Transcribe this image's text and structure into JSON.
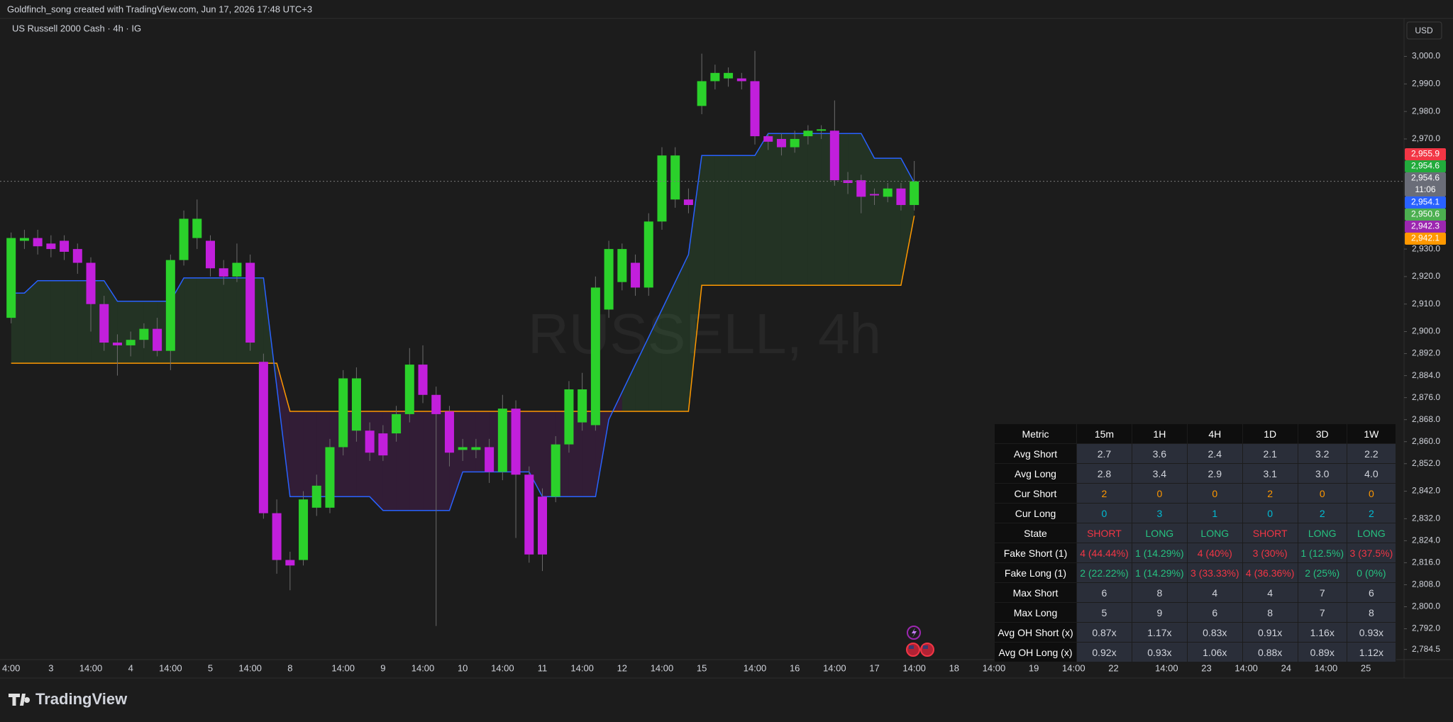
{
  "header": {
    "credit": "Goldfinch_song created with TradingView.com, Jun 17, 2026 17:48 UTC+3",
    "currency": "USD"
  },
  "footer": {
    "brand": "TradingView"
  },
  "chart_data": {
    "type": "candlestick",
    "title": "US Russell 2000 Cash · 4h · IG",
    "watermark": "RUSSELL, 4h",
    "up_color": "#2bd12b",
    "down_color": "#c21fdc",
    "categories": [
      "4:00",
      null,
      null,
      "3",
      null,
      null,
      "14:00",
      null,
      null,
      "4",
      null,
      null,
      "14:00",
      null,
      null,
      "5",
      null,
      null,
      "14:00",
      null,
      null,
      "8",
      null,
      null,
      null,
      "14:00",
      null,
      null,
      "9",
      null,
      null,
      "14:00",
      null,
      null,
      "10",
      null,
      null,
      "14:00",
      null,
      null,
      "11",
      null,
      null,
      "14:00",
      null,
      null,
      "12",
      null,
      null,
      "14:00",
      null,
      null,
      "15",
      null,
      null,
      null,
      "14:00",
      null,
      null,
      "16",
      null,
      null,
      "14:00",
      null,
      null,
      "17",
      null,
      null,
      "14:00",
      null,
      null,
      "18",
      null,
      null,
      "14:00",
      null,
      null,
      "19",
      null,
      null,
      "14:00",
      null,
      null,
      "22",
      null,
      null,
      null,
      "14:00",
      null,
      null,
      "23",
      null,
      null,
      "14:00",
      null,
      null,
      "24",
      null,
      null,
      "14:00",
      null,
      null,
      "25",
      null
    ],
    "open": [
      2905,
      2933,
      2934,
      2932,
      2933,
      2930,
      2925,
      2910,
      2896,
      2895,
      2897,
      2901,
      2893,
      2926,
      2934,
      2933,
      2923,
      2920,
      2925,
      2889,
      2834,
      2817,
      2817,
      2836,
      2836,
      2858,
      2864,
      2864,
      2863,
      2863,
      2870,
      2888,
      2877,
      2871,
      2857,
      2857,
      2858,
      2849,
      2872,
      2848,
      2840,
      2840,
      2859,
      2867,
      2866,
      2908,
      2918,
      2925,
      2916,
      2940,
      2948,
      2948,
      2982,
      2991,
      2992,
      2992,
      2991,
      2971,
      2970,
      2967,
      2971,
      2973,
      2973,
      2955,
      2955,
      2950,
      2949,
      2952,
      2946,
      null,
      null,
      null,
      null,
      null,
      null,
      null,
      null,
      null,
      null,
      null,
      null,
      null,
      null,
      null,
      null,
      null,
      null,
      null,
      null,
      null,
      null,
      null,
      null,
      null,
      null,
      null,
      null,
      null,
      null,
      null,
      null,
      null,
      null,
      null
    ],
    "high": [
      2936,
      2937,
      2937,
      2935,
      2935,
      2932,
      2927,
      2913,
      2899,
      2900,
      2903,
      2905,
      2928,
      2944,
      2948,
      2935,
      2926,
      2932,
      2928,
      2892,
      2839,
      2820,
      2842,
      2848,
      2861,
      2886,
      2887,
      2867,
      2866,
      2873,
      2894,
      2895,
      2880,
      2873,
      2861,
      2861,
      2861,
      2877,
      2875,
      2851,
      2843,
      2862,
      2882,
      2885,
      2920,
      2933,
      2932,
      2928,
      2943,
      2967,
      2967,
      2952,
      3001,
      2997,
      2996,
      2994,
      3002,
      2972,
      2972,
      2973,
      2975,
      2975,
      2984,
      2958,
      2957,
      2952,
      2954,
      2954,
      2962,
      null,
      null,
      null,
      null,
      null,
      null,
      null,
      null,
      null,
      null,
      null,
      null,
      null,
      null,
      null,
      null,
      null,
      null,
      null,
      null,
      null,
      null,
      null,
      null,
      null,
      null,
      null,
      null,
      null,
      null,
      null,
      null,
      null,
      null,
      null
    ],
    "low": [
      2903,
      2930,
      2928,
      2927,
      2926,
      2921,
      2900,
      2893,
      2884,
      2891,
      2894,
      2891,
      2886,
      2924,
      2930,
      2920,
      2917,
      2918,
      2893,
      2832,
      2812,
      2806,
      2815,
      2833,
      2834,
      2855,
      2860,
      2853,
      2853,
      2860,
      2867,
      2874,
      2793,
      2851,
      2853,
      2854,
      2845,
      2846,
      2825,
      2816,
      2813,
      2838,
      2856,
      2864,
      2864,
      2905,
      2915,
      2913,
      2913,
      2937,
      2945,
      2943,
      2979,
      2988,
      2989,
      2988,
      2968,
      2966,
      2964,
      2965,
      2968,
      2970,
      2953,
      2950,
      2943,
      2946,
      2947,
      2944,
      2944,
      null,
      null,
      null,
      null,
      null,
      null,
      null,
      null,
      null,
      null,
      null,
      null,
      null,
      null,
      null,
      null,
      null,
      null,
      null,
      null,
      null,
      null,
      null,
      null,
      null,
      null,
      null,
      null,
      null,
      null,
      null,
      null,
      null,
      null,
      null
    ],
    "close": [
      2934,
      2934,
      2931,
      2930,
      2929,
      2925,
      2910,
      2896,
      2895,
      2897,
      2901,
      2893,
      2926,
      2941,
      2941,
      2923,
      2920,
      2925,
      2896,
      2834,
      2817,
      2815,
      2839,
      2844,
      2858,
      2883,
      2883,
      2856,
      2855,
      2870,
      2888,
      2877,
      2870,
      2856,
      2858,
      2858,
      2849,
      2872,
      2848,
      2819,
      2819,
      2859,
      2879,
      2879,
      2916,
      2930,
      2930,
      2916,
      2940,
      2964,
      2964,
      2946,
      2991,
      2994,
      2994,
      2991,
      2971,
      2969,
      2967,
      2970,
      2973,
      2973.5,
      2955,
      2954,
      2949,
      2949.5,
      2952,
      2946,
      2954.6,
      null,
      null,
      null,
      null,
      null,
      null,
      null,
      null,
      null,
      null,
      null,
      null,
      null,
      null,
      null,
      null,
      null,
      null,
      null,
      null,
      null,
      null,
      null,
      null,
      null,
      null,
      null,
      null,
      null,
      null,
      null,
      null,
      null,
      null,
      null
    ],
    "series": [
      {
        "color": "#ff9800",
        "values": [
          2888.5,
          2888.5,
          2888.5,
          2888.5,
          2888.5,
          2888.5,
          2888.5,
          2888.5,
          2888.5,
          2888.5,
          2888.5,
          2888.5,
          2888.5,
          2888.5,
          2888.5,
          2888.5,
          2888.5,
          2888.5,
          2888.5,
          2888.5,
          2888.5,
          2871,
          2871,
          2871,
          2871,
          2871,
          2871,
          2871,
          2871,
          2871,
          2871,
          2871,
          2871,
          2871,
          2871,
          2871,
          2871,
          2871,
          2871,
          2871,
          2871,
          2871,
          2871,
          2871,
          2871,
          2871,
          2871,
          2871,
          2871,
          2871,
          2871,
          2871,
          2916.8,
          2916.8,
          2916.8,
          2916.8,
          2916.8,
          2916.8,
          2916.8,
          2916.8,
          2916.8,
          2916.8,
          2916.8,
          2916.8,
          2916.8,
          2916.8,
          2916.8,
          2916.8,
          2942.1,
          null,
          null,
          null,
          null,
          null,
          null,
          null,
          null,
          null,
          null,
          null,
          null,
          null,
          null,
          null,
          null,
          null,
          null,
          null,
          null,
          null,
          null,
          null,
          null,
          null,
          null,
          null,
          null,
          null,
          null,
          null,
          null,
          null,
          null,
          null
        ]
      },
      {
        "color": "#2962ff",
        "values": [
          2914,
          2914,
          2918.5,
          2918.5,
          2918.5,
          2918.5,
          2918.5,
          2918.5,
          2911,
          2911,
          2911,
          2911,
          2911,
          2919.5,
          2919.5,
          2919.5,
          2919.5,
          2919.5,
          2919.5,
          2919.5,
          2880,
          2840,
          2840,
          2840,
          2840,
          2840,
          2840,
          2840,
          2835,
          2835,
          2835,
          2835,
          2835,
          2835,
          2849,
          2849,
          2849,
          2849,
          2849,
          2849,
          2840,
          2840,
          2840,
          2840,
          2840,
          2868,
          2878,
          2888,
          2898,
          2908,
          2918,
          2928,
          2964,
          2964,
          2964,
          2964,
          2964,
          2972,
          2972,
          2972,
          2972,
          2972,
          2972,
          2972,
          2972,
          2963,
          2963,
          2963,
          2954.1,
          null,
          null,
          null,
          null,
          null,
          null,
          null,
          null,
          null,
          null,
          null,
          null,
          null,
          null,
          null,
          null,
          null,
          null,
          null,
          null,
          null,
          null,
          null,
          null,
          null,
          null,
          null,
          null,
          null,
          null,
          null,
          null,
          null,
          null,
          null
        ]
      }
    ],
    "ylim": [
      2780.8,
      3013.8
    ],
    "yticks": [
      {
        "value": 3000,
        "label": "3,000.0"
      },
      {
        "value": 2990,
        "label": "2,990.0"
      },
      {
        "value": 2980,
        "label": "2,980.0"
      },
      {
        "value": 2970,
        "label": "2,970.0"
      },
      {
        "value": 2930,
        "label": "2,930.0"
      },
      {
        "value": 2920,
        "label": "2,920.0"
      },
      {
        "value": 2910,
        "label": "2,910.0"
      },
      {
        "value": 2900,
        "label": "2,900.0"
      },
      {
        "value": 2892,
        "label": "2,892.0"
      },
      {
        "value": 2884,
        "label": "2,884.0"
      },
      {
        "value": 2876,
        "label": "2,876.0"
      },
      {
        "value": 2868,
        "label": "2,868.0"
      },
      {
        "value": 2860,
        "label": "2,860.0"
      },
      {
        "value": 2852,
        "label": "2,852.0"
      },
      {
        "value": 2842,
        "label": "2,842.0"
      },
      {
        "value": 2832,
        "label": "2,832.0"
      },
      {
        "value": 2824,
        "label": "2,824.0"
      },
      {
        "value": 2816,
        "label": "2,816.0"
      },
      {
        "value": 2808,
        "label": "2,808.0"
      },
      {
        "value": 2800,
        "label": "2,800.0"
      },
      {
        "value": 2792,
        "label": "2,792.0"
      },
      {
        "value": 2784.5,
        "label": "2,784.5"
      }
    ],
    "price_labels": [
      {
        "value": 2955.9,
        "label": "2,955.9",
        "color": "#f23645"
      },
      {
        "value": 2954.6,
        "label": "2,954.6",
        "color": "#22ab3c"
      },
      {
        "value": 2954.6,
        "label": "2,954.6",
        "countdown": "11:06",
        "color": "#6a6d78"
      },
      {
        "value": 2954.1,
        "label": "2,954.1",
        "color": "#2962ff"
      },
      {
        "value": 2950.6,
        "label": "2,950.6",
        "color": "#4caf50"
      },
      {
        "value": 2942.3,
        "label": "2,942.3",
        "color": "#9c27b0"
      },
      {
        "value": 2942.1,
        "label": "2,942.1",
        "color": "#ff9800"
      }
    ]
  },
  "table": {
    "columns": [
      "Metric",
      "15m",
      "1H",
      "4H",
      "1D",
      "3D",
      "1W"
    ],
    "rows": [
      {
        "cells": [
          "Avg Short",
          "2.7",
          "3.6",
          "2.4",
          "2.1",
          "3.2",
          "2.2"
        ]
      },
      {
        "cells": [
          "Avg Long",
          "2.8",
          "3.4",
          "2.9",
          "3.1",
          "3.0",
          "4.0"
        ]
      },
      {
        "cells": [
          "Cur Short",
          "2",
          "0",
          "0",
          "2",
          "0",
          "0"
        ],
        "colors": [
          null,
          "#ff9800",
          "#ff9800",
          "#ff9800",
          "#ff9800",
          "#ff9800",
          "#ff9800"
        ]
      },
      {
        "cells": [
          "Cur Long",
          "0",
          "3",
          "1",
          "0",
          "2",
          "2"
        ],
        "colors": [
          null,
          "#00bcd4",
          "#00bcd4",
          "#00bcd4",
          "#00bcd4",
          "#00bcd4",
          "#00bcd4"
        ]
      },
      {
        "cells": [
          "State",
          "SHORT",
          "LONG",
          "LONG",
          "SHORT",
          "LONG",
          "LONG"
        ],
        "colors": [
          null,
          "#f23645",
          "#26c281",
          "#26c281",
          "#f23645",
          "#26c281",
          "#26c281"
        ]
      },
      {
        "cells": [
          "Fake Short (1)",
          "4 (44.44%)",
          "1 (14.29%)",
          "4 (40%)",
          "3 (30%)",
          "1 (12.5%)",
          "3 (37.5%)"
        ],
        "colors": [
          null,
          "#f23645",
          "#26c281",
          "#f23645",
          "#f23645",
          "#26c281",
          "#f23645"
        ]
      },
      {
        "cells": [
          "Fake Long (1)",
          "2 (22.22%)",
          "1 (14.29%)",
          "3 (33.33%)",
          "4 (36.36%)",
          "2 (25%)",
          "0 (0%)"
        ],
        "colors": [
          null,
          "#26c281",
          "#26c281",
          "#f23645",
          "#f23645",
          "#26c281",
          "#26c281"
        ]
      },
      {
        "cells": [
          "Max Short",
          "6",
          "8",
          "4",
          "4",
          "7",
          "6"
        ]
      },
      {
        "cells": [
          "Max Long",
          "5",
          "9",
          "6",
          "8",
          "7",
          "8"
        ]
      },
      {
        "cells": [
          "Avg OH Short (x)",
          "0.87x",
          "1.17x",
          "0.83x",
          "0.91x",
          "1.16x",
          "0.93x"
        ]
      },
      {
        "cells": [
          "Avg OH Long (x)",
          "0.92x",
          "0.93x",
          "1.06x",
          "0.88x",
          "0.89x",
          "1.12x"
        ]
      }
    ]
  }
}
